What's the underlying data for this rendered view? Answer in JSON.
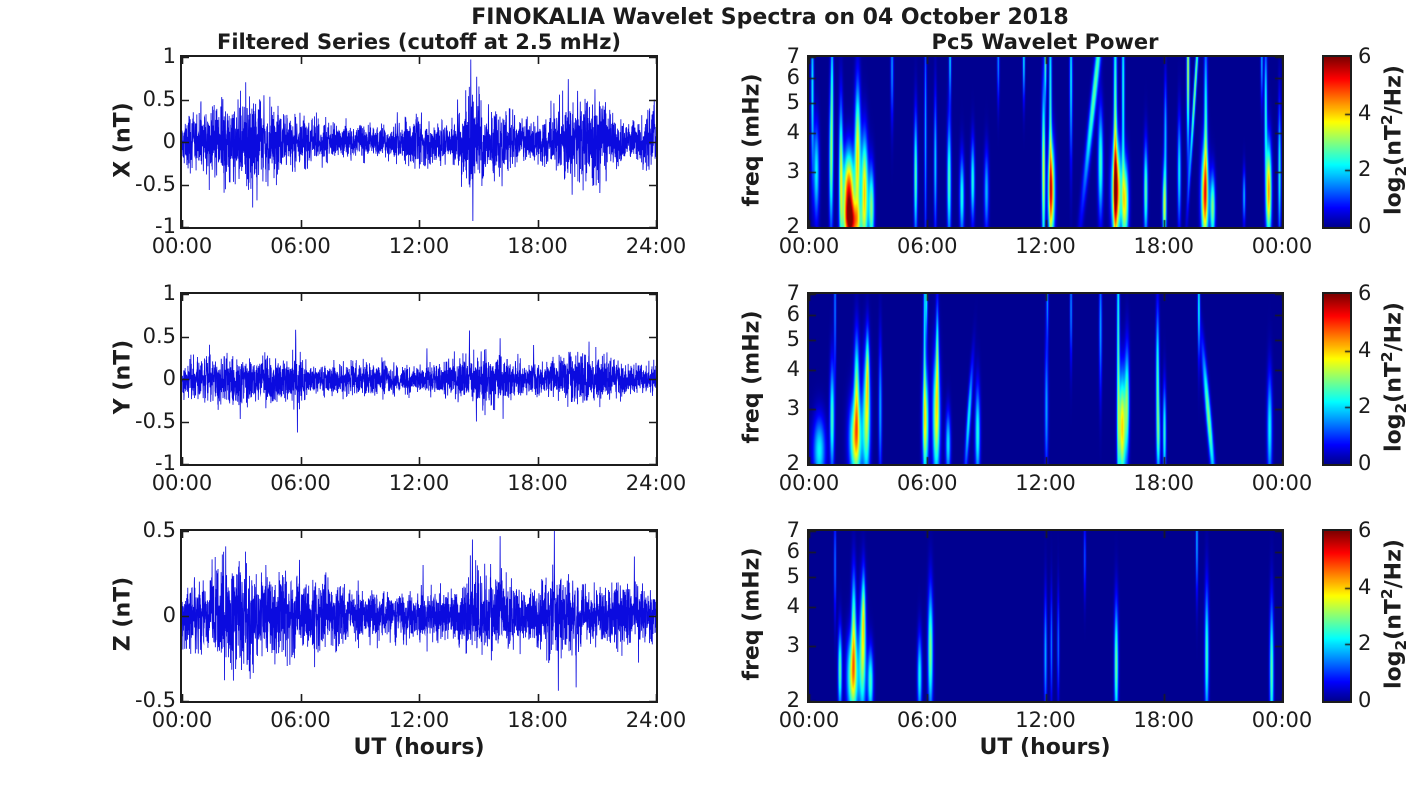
{
  "figure": {
    "title": "FINOKALIA Wavelet Spectra on 04 October 2018",
    "left_column_title": "Filtered Series (cutoff at 2.5 mHz)",
    "right_column_title": "Pc5 Wavelet Power",
    "xlabel": "UT (hours)",
    "left_ylabels": [
      "X (nT)",
      "Y (nT)",
      "Z (nT)"
    ],
    "right_ylabel": "freq (mHz)",
    "colorbar_label_parts": {
      "p1": "log",
      "sub": "2",
      "p2": "(nT",
      "sup": "2",
      "p3": "/Hz)"
    },
    "series_color": "#0b0bdf",
    "heatmap_background": "#00008f",
    "text_color": "#1c1c1c"
  },
  "axes": {
    "x_tick_hours": [
      0,
      6,
      12,
      18,
      24
    ],
    "left_x_ticklabels": [
      "00:00",
      "06:00",
      "12:00",
      "18:00",
      "24:00"
    ],
    "right_x_ticklabels": [
      "00:00",
      "06:00",
      "12:00",
      "18:00",
      "00:00"
    ],
    "row12_yticks": {
      "values": [
        1,
        0.5,
        0,
        -0.5,
        -1
      ],
      "labels": [
        "1",
        "0.5",
        "0",
        "-0.5",
        "-1"
      ]
    },
    "row3_yticks": {
      "values": [
        0.5,
        0,
        -0.5
      ],
      "labels": [
        "0.5",
        "0",
        "-0.5"
      ]
    },
    "spec_yticks": {
      "values": [
        7,
        6,
        5,
        4,
        3,
        2
      ],
      "labels": [
        "7",
        "6",
        "5",
        "4",
        "3",
        "2"
      ]
    },
    "colorbar_ticks": {
      "values": [
        6,
        4,
        2,
        0
      ],
      "labels": [
        "6",
        "4",
        "2",
        "0"
      ]
    }
  },
  "chart_data": [
    {
      "id": "x-filtered-series",
      "type": "line",
      "ylabel": "X (nT)",
      "xlabel": "UT (hours)",
      "xlim_hours": [
        0,
        24
      ],
      "ylim": [
        -1,
        1
      ],
      "description": "band-limited noise filtered above 2.5 mHz; amplitude envelope bursts and spikes read from figure",
      "noise_base_amplitude": 0.16,
      "bursts": [
        {
          "t": 1.2,
          "w": 1.2,
          "a": 0.12
        },
        {
          "t": 2.6,
          "w": 0.9,
          "a": 0.16
        },
        {
          "t": 4.0,
          "w": 0.9,
          "a": 0.2
        },
        {
          "t": 6.3,
          "w": 0.8,
          "a": 0.1
        },
        {
          "t": 12.0,
          "w": 0.8,
          "a": 0.07
        },
        {
          "t": 14.6,
          "w": 0.4,
          "a": 0.3
        },
        {
          "t": 15.9,
          "w": 0.9,
          "a": 0.18
        },
        {
          "t": 19.5,
          "w": 0.9,
          "a": 0.2
        },
        {
          "t": 21.0,
          "w": 0.9,
          "a": 0.18
        },
        {
          "t": 23.8,
          "w": 0.5,
          "a": 0.12
        }
      ],
      "spikes": [
        {
          "t": 14.62,
          "v": 0.97
        },
        {
          "t": 14.72,
          "v": -0.93
        },
        {
          "t": 13.95,
          "v": 0.5
        },
        {
          "t": 16.2,
          "v": -0.52
        },
        {
          "t": 19.55,
          "v": 0.74
        },
        {
          "t": 19.75,
          "v": -0.62
        },
        {
          "t": 20.9,
          "v": 0.62
        },
        {
          "t": 21.15,
          "v": -0.6
        },
        {
          "t": 4.15,
          "v": 0.55
        },
        {
          "t": 4.35,
          "v": -0.52
        },
        {
          "t": 23.9,
          "v": 0.5
        },
        {
          "t": 10.9,
          "v": 0.35
        }
      ]
    },
    {
      "id": "y-filtered-series",
      "type": "line",
      "ylabel": "Y (nT)",
      "xlabel": "UT (hours)",
      "xlim_hours": [
        0,
        24
      ],
      "ylim": [
        -1,
        1
      ],
      "description": "band-limited noise filtered above 2.5 mHz",
      "noise_base_amplitude": 0.13,
      "bursts": [
        {
          "t": 1.6,
          "w": 1.4,
          "a": 0.1
        },
        {
          "t": 4.4,
          "w": 1.2,
          "a": 0.08
        },
        {
          "t": 5.8,
          "w": 0.25,
          "a": 0.12
        },
        {
          "t": 9.2,
          "w": 1.2,
          "a": 0.04
        },
        {
          "t": 14.8,
          "w": 1.0,
          "a": 0.1
        },
        {
          "t": 16.0,
          "w": 0.8,
          "a": 0.1
        },
        {
          "t": 19.4,
          "w": 0.9,
          "a": 0.09
        },
        {
          "t": 21.0,
          "w": 0.9,
          "a": 0.08
        }
      ],
      "spikes": [
        {
          "t": 5.75,
          "v": 0.58
        },
        {
          "t": 5.84,
          "v": -0.63
        },
        {
          "t": 14.55,
          "v": 0.57
        },
        {
          "t": 14.9,
          "v": -0.5
        },
        {
          "t": 16.1,
          "v": 0.48
        },
        {
          "t": 2.95,
          "v": -0.47
        },
        {
          "t": 20.6,
          "v": 0.44
        },
        {
          "t": 12.4,
          "v": 0.36
        },
        {
          "t": 17.8,
          "v": 0.4
        }
      ]
    },
    {
      "id": "z-filtered-series",
      "type": "line",
      "ylabel": "Z (nT)",
      "xlabel": "UT (hours)",
      "xlim_hours": [
        0,
        24
      ],
      "ylim": [
        -0.5,
        0.5
      ],
      "description": "band-limited noise filtered above 2.5 mHz",
      "noise_base_amplitude": 0.12,
      "bursts": [
        {
          "t": 1.9,
          "w": 1.0,
          "a": 0.1
        },
        {
          "t": 2.9,
          "w": 0.8,
          "a": 0.1
        },
        {
          "t": 4.6,
          "w": 0.8,
          "a": 0.1
        },
        {
          "t": 7.0,
          "w": 0.9,
          "a": 0.05
        },
        {
          "t": 14.8,
          "w": 0.5,
          "a": 0.08
        },
        {
          "t": 16.0,
          "w": 0.6,
          "a": 0.08
        },
        {
          "t": 19.2,
          "w": 0.7,
          "a": 0.09
        },
        {
          "t": 22.8,
          "w": 0.8,
          "a": 0.04
        }
      ],
      "spikes": [
        {
          "t": 14.7,
          "v": 0.45
        },
        {
          "t": 16.1,
          "v": 0.47
        },
        {
          "t": 18.85,
          "v": 0.5
        },
        {
          "t": 19.05,
          "v": -0.44
        },
        {
          "t": 19.95,
          "v": -0.42
        },
        {
          "t": 2.6,
          "v": -0.38
        },
        {
          "t": 3.45,
          "v": -0.37
        },
        {
          "t": 22.9,
          "v": 0.35
        },
        {
          "t": 5.95,
          "v": 0.33
        },
        {
          "t": 12.2,
          "v": 0.3
        }
      ]
    },
    {
      "id": "x-wavelet-power",
      "type": "heatmap",
      "ylabel": "freq (mHz)",
      "xlabel": "UT (hours)",
      "xlim_hours": [
        0,
        24
      ],
      "freq_range_mhz": [
        2,
        7
      ],
      "yscale": "log2",
      "power_range_log2": [
        0,
        6
      ],
      "colormap": "jet",
      "colorbar_label": "log2(nT^2/Hz)",
      "blobs": [
        {
          "t": 0.15,
          "f": 5.5,
          "st": 0.05,
          "sf": 0.6,
          "p": 2.2
        },
        {
          "t": 0.35,
          "f": 3.0,
          "st": 0.1,
          "sf": 0.35,
          "p": 2.2
        },
        {
          "t": 1.1,
          "f": 3.2,
          "st": 0.07,
          "sf": 0.5,
          "p": 2.8
        },
        {
          "t": 1.15,
          "f": 5.8,
          "st": 0.05,
          "sf": 0.5,
          "p": 2.0
        },
        {
          "t": 1.6,
          "f": 3.0,
          "st": 0.07,
          "sf": 0.5,
          "p": 3.2
        },
        {
          "t": 2.0,
          "f": 2.5,
          "st": 0.2,
          "sf": 0.32,
          "p": 5.3
        },
        {
          "t": 2.45,
          "f": 3.4,
          "st": 0.1,
          "sf": 0.5,
          "p": 3.8
        },
        {
          "t": 2.8,
          "f": 2.6,
          "st": 0.12,
          "sf": 0.4,
          "p": 4.0
        },
        {
          "t": 3.15,
          "f": 2.3,
          "st": 0.1,
          "sf": 0.3,
          "p": 3.0
        },
        {
          "t": 2.2,
          "f": 2.05,
          "st": 0.3,
          "sf": 0.16,
          "p": 3.4
        },
        {
          "t": 4.2,
          "f": 6.5,
          "st": 0.05,
          "sf": 0.4,
          "p": 1.6
        },
        {
          "t": 5.4,
          "f": 2.9,
          "st": 0.06,
          "sf": 0.45,
          "p": 2.8
        },
        {
          "t": 5.9,
          "f": 4.0,
          "st": 0.04,
          "sf": 0.8,
          "p": 1.8
        },
        {
          "t": 6.4,
          "f": 3.2,
          "st": 0.05,
          "sf": 0.5,
          "p": 2.0
        },
        {
          "t": 7.1,
          "f": 2.8,
          "st": 0.07,
          "sf": 0.45,
          "p": 2.7
        },
        {
          "t": 7.15,
          "f": 6.9,
          "st": 0.04,
          "sf": 0.3,
          "p": 2.0
        },
        {
          "t": 7.75,
          "f": 2.5,
          "st": 0.08,
          "sf": 0.3,
          "p": 2.4
        },
        {
          "t": 8.3,
          "f": 2.8,
          "st": 0.07,
          "sf": 0.3,
          "p": 2.4
        },
        {
          "t": 9.0,
          "f": 2.6,
          "st": 0.08,
          "sf": 0.3,
          "p": 1.8
        },
        {
          "t": 9.6,
          "f": 6.8,
          "st": 0.04,
          "sf": 0.3,
          "p": 1.6
        },
        {
          "t": 10.9,
          "f": 6.9,
          "st": 0.04,
          "sf": 0.3,
          "p": 2.2
        },
        {
          "t": 11.9,
          "f": 3.0,
          "st": 0.06,
          "sf": 0.6,
          "p": 3.6
        },
        {
          "t": 12.3,
          "f": 2.6,
          "st": 0.12,
          "sf": 0.35,
          "p": 4.6
        },
        {
          "t": 12.25,
          "f": 5.0,
          "st": 0.05,
          "sf": 0.9,
          "p": 2.4
        },
        {
          "t": 12.0,
          "f": 6.9,
          "st": 0.04,
          "sf": 0.3,
          "p": 2.6
        },
        {
          "t": 13.3,
          "f": 6.0,
          "st": 0.05,
          "sf": 0.6,
          "p": 2.2
        },
        {
          "t": 14.5,
          "f": 5.5,
          "st": 0.1,
          "sf": 0.8,
          "p": 2.8,
          "tl": 0.5
        },
        {
          "t": 14.8,
          "f": 3.2,
          "st": 0.09,
          "sf": 0.4,
          "p": 2.6
        },
        {
          "t": 15.6,
          "f": 2.6,
          "st": 0.16,
          "sf": 0.35,
          "p": 5.2
        },
        {
          "t": 15.55,
          "f": 4.5,
          "st": 0.06,
          "sf": 1.0,
          "p": 2.8
        },
        {
          "t": 15.95,
          "f": 5.5,
          "st": 0.05,
          "sf": 0.8,
          "p": 2.4
        },
        {
          "t": 16.05,
          "f": 2.4,
          "st": 0.12,
          "sf": 0.3,
          "p": 3.6
        },
        {
          "t": 17.1,
          "f": 2.6,
          "st": 0.07,
          "sf": 0.35,
          "p": 2.8
        },
        {
          "t": 18.05,
          "f": 2.3,
          "st": 0.07,
          "sf": 0.3,
          "p": 3.4
        },
        {
          "t": 18.1,
          "f": 4.0,
          "st": 0.05,
          "sf": 0.4,
          "p": 1.8
        },
        {
          "t": 18.8,
          "f": 3.0,
          "st": 0.06,
          "sf": 0.4,
          "p": 2.2
        },
        {
          "t": 19.25,
          "f": 6.3,
          "st": 0.05,
          "sf": 0.6,
          "p": 3.4
        },
        {
          "t": 19.6,
          "f": 5.5,
          "st": 0.05,
          "sf": 0.7,
          "p": 3.0,
          "tl": 0.3
        },
        {
          "t": 20.1,
          "f": 2.5,
          "st": 0.13,
          "sf": 0.35,
          "p": 4.6
        },
        {
          "t": 20.15,
          "f": 4.5,
          "st": 0.06,
          "sf": 0.6,
          "p": 2.4
        },
        {
          "t": 20.5,
          "f": 2.3,
          "st": 0.09,
          "sf": 0.25,
          "p": 3.0
        },
        {
          "t": 22.1,
          "f": 2.5,
          "st": 0.05,
          "sf": 0.2,
          "p": 1.8
        },
        {
          "t": 23.35,
          "f": 2.6,
          "st": 0.1,
          "sf": 0.35,
          "p": 4.4
        },
        {
          "t": 23.2,
          "f": 4.8,
          "st": 0.05,
          "sf": 0.5,
          "p": 2.4
        },
        {
          "t": 23.0,
          "f": 6.8,
          "st": 0.04,
          "sf": 0.3,
          "p": 1.8
        },
        {
          "t": 23.9,
          "f": 3.0,
          "st": 0.05,
          "sf": 0.5,
          "p": 2.4
        }
      ]
    },
    {
      "id": "y-wavelet-power",
      "type": "heatmap",
      "ylabel": "freq (mHz)",
      "xlabel": "UT (hours)",
      "xlim_hours": [
        0,
        24
      ],
      "freq_range_mhz": [
        2,
        7
      ],
      "yscale": "log2",
      "power_range_log2": [
        0,
        6
      ],
      "colormap": "jet",
      "colorbar_label": "log2(nT^2/Hz)",
      "blobs": [
        {
          "t": 0.5,
          "f": 2.2,
          "st": 0.22,
          "sf": 0.25,
          "p": 2.2
        },
        {
          "t": 1.15,
          "f": 2.8,
          "st": 0.08,
          "sf": 0.4,
          "p": 2.6
        },
        {
          "t": 1.3,
          "f": 6.4,
          "st": 0.04,
          "sf": 0.5,
          "p": 1.5
        },
        {
          "t": 2.35,
          "f": 2.4,
          "st": 0.22,
          "sf": 0.3,
          "p": 3.7
        },
        {
          "t": 2.4,
          "f": 3.5,
          "st": 0.09,
          "sf": 0.4,
          "p": 2.8
        },
        {
          "t": 2.9,
          "f": 2.8,
          "st": 0.13,
          "sf": 0.45,
          "p": 3.2
        },
        {
          "t": 2.95,
          "f": 4.0,
          "st": 0.06,
          "sf": 0.3,
          "p": 2.2
        },
        {
          "t": 3.6,
          "f": 3.0,
          "st": 0.06,
          "sf": 0.5,
          "p": 1.7
        },
        {
          "t": 5.9,
          "f": 2.7,
          "st": 0.11,
          "sf": 0.4,
          "p": 3.3
        },
        {
          "t": 5.85,
          "f": 5.3,
          "st": 0.04,
          "sf": 0.8,
          "p": 2.0
        },
        {
          "t": 5.95,
          "f": 6.9,
          "st": 0.04,
          "sf": 0.3,
          "p": 2.2
        },
        {
          "t": 6.45,
          "f": 2.8,
          "st": 0.13,
          "sf": 0.45,
          "p": 3.5
        },
        {
          "t": 6.5,
          "f": 4.5,
          "st": 0.05,
          "sf": 0.4,
          "p": 2.2
        },
        {
          "t": 7.05,
          "f": 2.3,
          "st": 0.09,
          "sf": 0.25,
          "p": 2.1
        },
        {
          "t": 8.1,
          "f": 2.8,
          "st": 0.07,
          "sf": 0.4,
          "p": 2.2,
          "tl": 0.3
        },
        {
          "t": 8.55,
          "f": 2.5,
          "st": 0.09,
          "sf": 0.35,
          "p": 2.4
        },
        {
          "t": 12.05,
          "f": 3.0,
          "st": 0.06,
          "sf": 0.5,
          "p": 1.7
        },
        {
          "t": 12.1,
          "f": 6.8,
          "st": 0.04,
          "sf": 0.3,
          "p": 1.6
        },
        {
          "t": 13.3,
          "f": 6.3,
          "st": 0.04,
          "sf": 0.4,
          "p": 1.6
        },
        {
          "t": 14.8,
          "f": 5.5,
          "st": 0.05,
          "sf": 0.5,
          "p": 1.7
        },
        {
          "t": 15.7,
          "f": 4.5,
          "st": 0.05,
          "sf": 1.1,
          "p": 2.6
        },
        {
          "t": 15.9,
          "f": 2.6,
          "st": 0.13,
          "sf": 0.4,
          "p": 4.0
        },
        {
          "t": 16.15,
          "f": 3.2,
          "st": 0.08,
          "sf": 0.4,
          "p": 2.6
        },
        {
          "t": 17.7,
          "f": 3.8,
          "st": 0.06,
          "sf": 0.5,
          "p": 2.6
        },
        {
          "t": 17.75,
          "f": 2.4,
          "st": 0.07,
          "sf": 0.3,
          "p": 2.0
        },
        {
          "t": 18.05,
          "f": 2.5,
          "st": 0.06,
          "sf": 0.35,
          "p": 2.5
        },
        {
          "t": 19.8,
          "f": 6.5,
          "st": 0.04,
          "sf": 0.4,
          "p": 2.2
        },
        {
          "t": 20.3,
          "f": 2.8,
          "st": 0.09,
          "sf": 0.5,
          "p": 3.0,
          "tl": -0.4
        },
        {
          "t": 23.4,
          "f": 2.6,
          "st": 0.09,
          "sf": 0.4,
          "p": 2.2
        }
      ]
    },
    {
      "id": "z-wavelet-power",
      "type": "heatmap",
      "ylabel": "freq (mHz)",
      "xlabel": "UT (hours)",
      "xlim_hours": [
        0,
        24
      ],
      "freq_range_mhz": [
        2,
        7
      ],
      "yscale": "log2",
      "power_range_log2": [
        0,
        6
      ],
      "colormap": "jet",
      "colorbar_label": "log2(nT^2/Hz)",
      "blobs": [
        {
          "t": 1.55,
          "f": 2.5,
          "st": 0.07,
          "sf": 0.3,
          "p": 2.8
        },
        {
          "t": 1.3,
          "f": 5.5,
          "st": 0.04,
          "sf": 0.4,
          "p": 1.4
        },
        {
          "t": 2.2,
          "f": 2.4,
          "st": 0.2,
          "sf": 0.3,
          "p": 3.6
        },
        {
          "t": 2.25,
          "f": 3.5,
          "st": 0.08,
          "sf": 0.4,
          "p": 2.7
        },
        {
          "t": 2.7,
          "f": 2.8,
          "st": 0.12,
          "sf": 0.45,
          "p": 3.1
        },
        {
          "t": 2.75,
          "f": 3.9,
          "st": 0.06,
          "sf": 0.3,
          "p": 2.0
        },
        {
          "t": 3.1,
          "f": 2.3,
          "st": 0.1,
          "sf": 0.25,
          "p": 2.6
        },
        {
          "t": 5.6,
          "f": 2.4,
          "st": 0.08,
          "sf": 0.3,
          "p": 2.3
        },
        {
          "t": 6.15,
          "f": 2.9,
          "st": 0.09,
          "sf": 0.45,
          "p": 3.0
        },
        {
          "t": 12.0,
          "f": 2.8,
          "st": 0.05,
          "sf": 0.45,
          "p": 1.8
        },
        {
          "t": 12.3,
          "f": 3.0,
          "st": 0.04,
          "sf": 0.4,
          "p": 1.5
        },
        {
          "t": 12.65,
          "f": 3.0,
          "st": 0.04,
          "sf": 0.4,
          "p": 1.4
        },
        {
          "t": 14.0,
          "f": 5.8,
          "st": 0.04,
          "sf": 0.3,
          "p": 1.2
        },
        {
          "t": 15.6,
          "f": 2.6,
          "st": 0.07,
          "sf": 0.45,
          "p": 2.9
        },
        {
          "t": 19.7,
          "f": 6.5,
          "st": 0.04,
          "sf": 0.4,
          "p": 1.8
        },
        {
          "t": 20.2,
          "f": 2.8,
          "st": 0.07,
          "sf": 0.5,
          "p": 2.6
        },
        {
          "t": 23.5,
          "f": 2.5,
          "st": 0.07,
          "sf": 0.5,
          "p": 2.8
        }
      ]
    }
  ]
}
